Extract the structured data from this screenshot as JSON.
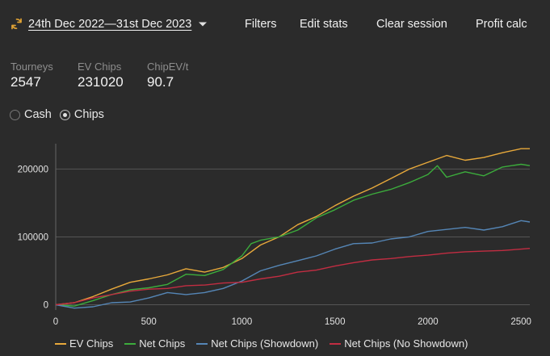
{
  "header": {
    "date_range": "24th Dec 2022—31st Dec 2023",
    "sync_icon": "refresh-icon",
    "links": {
      "filters": "Filters",
      "edit_stats": "Edit stats",
      "clear_session": "Clear session",
      "profit_calc": "Profit calc"
    }
  },
  "stats": [
    {
      "label": "Tourneys",
      "value": "2547"
    },
    {
      "label": "EV Chips",
      "value": "231020"
    },
    {
      "label": "ChipEV/t",
      "value": "90.7"
    }
  ],
  "mode": {
    "cash_label": "Cash",
    "chips_label": "Chips",
    "selected": "Chips"
  },
  "chart_data": {
    "type": "line",
    "xlim": [
      0,
      2547
    ],
    "ylim": [
      -3000,
      235000
    ],
    "x_ticks": [
      0,
      500,
      1000,
      1500,
      2000,
      2500
    ],
    "x_tick_labels": [
      "0",
      "500",
      "1000",
      "1500",
      "2000",
      "2500"
    ],
    "y_ticks": [
      0,
      100000,
      200000
    ],
    "y_tick_labels": [
      "0",
      "100000",
      "200000"
    ],
    "grid": "horizontal",
    "legend_position": "bottom",
    "series": [
      {
        "name": "EV Chips",
        "color": "#e8a93b",
        "x": [
          0,
          100,
          200,
          300,
          400,
          500,
          600,
          700,
          800,
          900,
          1000,
          1100,
          1200,
          1300,
          1400,
          1500,
          1600,
          1700,
          1800,
          1900,
          2000,
          2100,
          2200,
          2300,
          2400,
          2500,
          2547
        ],
        "y": [
          0,
          3000,
          12000,
          23000,
          33000,
          38000,
          44000,
          53000,
          48000,
          55000,
          68000,
          88000,
          100000,
          118000,
          130000,
          146000,
          160000,
          172000,
          186000,
          200000,
          210000,
          220000,
          213000,
          217000,
          224000,
          230000,
          230000
        ]
      },
      {
        "name": "Net Chips",
        "color": "#3cac3c",
        "x": [
          0,
          100,
          200,
          300,
          400,
          500,
          600,
          700,
          800,
          900,
          1000,
          1050,
          1100,
          1200,
          1300,
          1400,
          1500,
          1600,
          1700,
          1800,
          1900,
          2000,
          2050,
          2100,
          2200,
          2300,
          2400,
          2500,
          2547
        ],
        "y": [
          0,
          -2000,
          6000,
          15000,
          22000,
          25000,
          30000,
          45000,
          43000,
          52000,
          72000,
          90000,
          95000,
          100000,
          110000,
          128000,
          140000,
          154000,
          163000,
          170000,
          180000,
          192000,
          205000,
          188000,
          196000,
          190000,
          203000,
          207000,
          205000
        ]
      },
      {
        "name": "Net Chips (Showdown)",
        "color": "#5586b6",
        "x": [
          0,
          100,
          200,
          300,
          400,
          500,
          600,
          700,
          800,
          900,
          1000,
          1100,
          1200,
          1300,
          1400,
          1500,
          1600,
          1700,
          1800,
          1900,
          2000,
          2100,
          2200,
          2300,
          2400,
          2500,
          2547
        ],
        "y": [
          0,
          -5000,
          -3000,
          3000,
          4000,
          10000,
          18000,
          15000,
          18000,
          24000,
          35000,
          50000,
          58000,
          65000,
          72000,
          82000,
          90000,
          91000,
          97000,
          100000,
          108000,
          111000,
          114000,
          110000,
          115000,
          124000,
          122000
        ]
      },
      {
        "name": "Net Chips (No Showdown)",
        "color": "#c22d42",
        "x": [
          0,
          100,
          200,
          300,
          400,
          500,
          600,
          700,
          800,
          900,
          1000,
          1100,
          1200,
          1300,
          1400,
          1500,
          1600,
          1700,
          1800,
          1900,
          2000,
          2100,
          2200,
          2300,
          2400,
          2500,
          2547
        ],
        "y": [
          0,
          3000,
          10000,
          15000,
          20000,
          23000,
          24000,
          28000,
          29000,
          32000,
          33000,
          38000,
          42000,
          48000,
          51000,
          57000,
          62000,
          66000,
          68000,
          71000,
          73000,
          76000,
          78000,
          79000,
          80000,
          82000,
          83000
        ]
      }
    ]
  }
}
